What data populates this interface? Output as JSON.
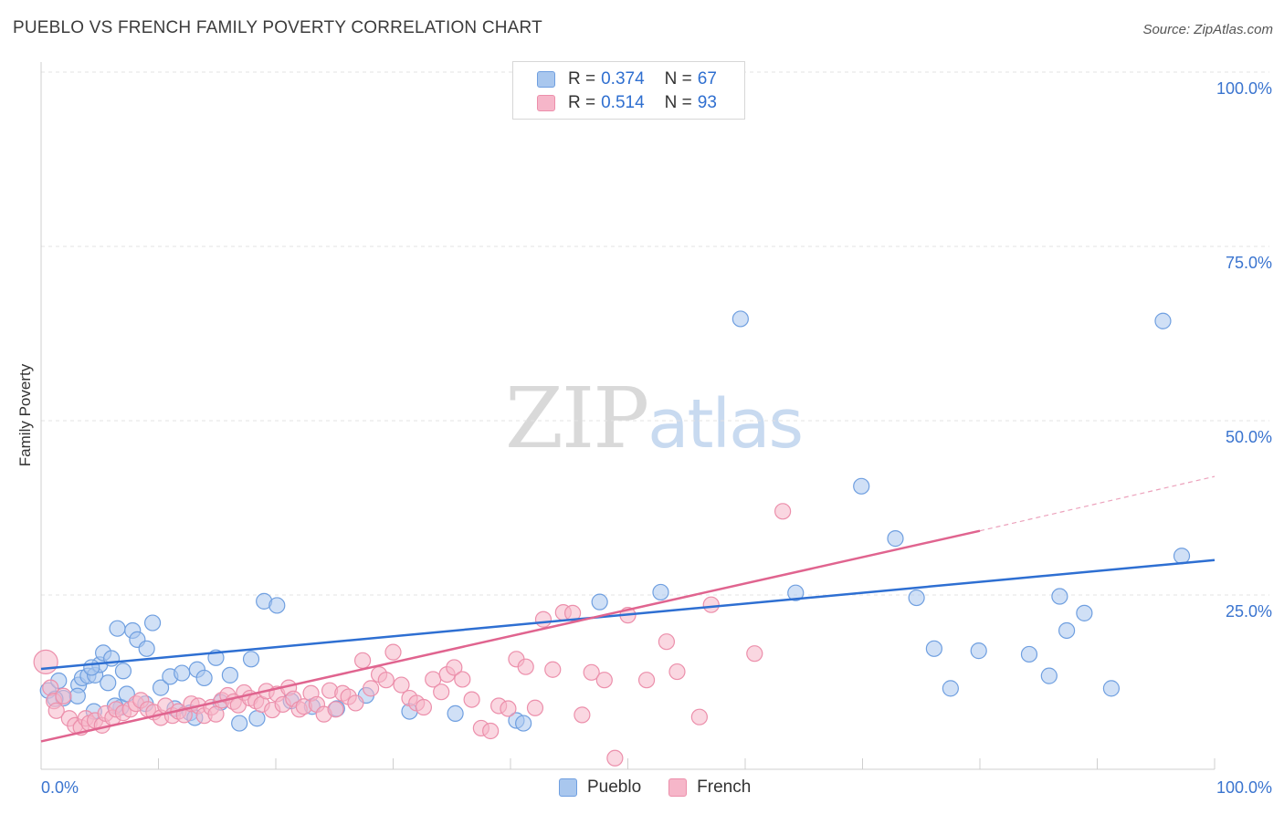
{
  "title": "PUEBLO VS FRENCH FAMILY POVERTY CORRELATION CHART",
  "source": "Source: ZipAtlas.com",
  "watermark": {
    "zip": "ZIP",
    "atlas": "atlas"
  },
  "colors": {
    "pueblo_fill": "#a9c7ee",
    "pueblo_stroke": "#6f9fe0",
    "pueblo_line": "#2e6fd2",
    "french_fill": "#f6b6c9",
    "french_stroke": "#ec8fab",
    "french_line": "#e0648f",
    "grid": "#e3e3e3",
    "tick_label": "#3a74cf"
  },
  "legend": {
    "pueblo": {
      "r_label": "R =",
      "r_value": "0.374",
      "n_label": "N =",
      "n_value": "67"
    },
    "french": {
      "r_label": "R =",
      "r_value": "0.514",
      "n_label": "N =",
      "n_value": "93"
    }
  },
  "chart_data": {
    "type": "scatter",
    "title": "PUEBLO VS FRENCH FAMILY POVERTY CORRELATION CHART",
    "xlabel": "",
    "ylabel": "Family Poverty",
    "xlim": [
      0,
      100
    ],
    "ylim": [
      0,
      100
    ],
    "x_tick_labels": [
      "0.0%",
      "100.0%"
    ],
    "y_ticks": [
      25,
      50,
      75,
      100
    ],
    "y_tick_labels": [
      "25.0%",
      "50.0%",
      "75.0%",
      "100.0%"
    ],
    "grid": true,
    "legend_position": "top-center",
    "series": [
      {
        "name": "Pueblo",
        "r": 0.374,
        "n": 67,
        "trend": {
          "x0": 0,
          "y0": 14.4,
          "x1": 100,
          "y1": 30.0
        },
        "points": [
          [
            0.6,
            11.3
          ],
          [
            1.5,
            12.7
          ],
          [
            1.9,
            10.2
          ],
          [
            3.2,
            12.1
          ],
          [
            3.5,
            13.1
          ],
          [
            4.0,
            13.4
          ],
          [
            4.6,
            13.5
          ],
          [
            5.0,
            15.0
          ],
          [
            5.3,
            16.7
          ],
          [
            6.0,
            15.9
          ],
          [
            6.5,
            20.2
          ],
          [
            7.0,
            14.1
          ],
          [
            7.8,
            19.9
          ],
          [
            8.2,
            18.6
          ],
          [
            9.0,
            17.3
          ],
          [
            9.5,
            21.0
          ],
          [
            10.2,
            11.7
          ],
          [
            11.0,
            13.3
          ],
          [
            12.0,
            13.8
          ],
          [
            13.3,
            14.3
          ],
          [
            13.9,
            13.1
          ],
          [
            14.9,
            16.0
          ],
          [
            16.1,
            13.5
          ],
          [
            17.9,
            15.8
          ],
          [
            19.0,
            24.1
          ],
          [
            20.1,
            23.5
          ],
          [
            1.2,
            10.1
          ],
          [
            3.1,
            10.5
          ],
          [
            4.3,
            14.6
          ],
          [
            5.7,
            12.4
          ],
          [
            6.8,
            8.9
          ],
          [
            4.5,
            8.3
          ],
          [
            6.3,
            9.1
          ],
          [
            7.3,
            10.8
          ],
          [
            8.9,
            9.4
          ],
          [
            11.4,
            8.7
          ],
          [
            12.7,
            8.1
          ],
          [
            13.1,
            7.4
          ],
          [
            15.3,
            9.6
          ],
          [
            16.9,
            6.6
          ],
          [
            18.4,
            7.3
          ],
          [
            21.3,
            9.8
          ],
          [
            23.1,
            9.0
          ],
          [
            25.2,
            8.7
          ],
          [
            27.7,
            10.6
          ],
          [
            31.4,
            8.3
          ],
          [
            35.3,
            8.0
          ],
          [
            40.5,
            7.0
          ],
          [
            41.1,
            6.6
          ],
          [
            47.6,
            24.0
          ],
          [
            52.8,
            25.4
          ],
          [
            59.6,
            64.6
          ],
          [
            64.3,
            25.3
          ],
          [
            69.9,
            40.6
          ],
          [
            72.8,
            33.1
          ],
          [
            74.6,
            24.6
          ],
          [
            76.1,
            17.3
          ],
          [
            77.5,
            11.6
          ],
          [
            79.9,
            17.0
          ],
          [
            84.2,
            16.5
          ],
          [
            85.9,
            13.4
          ],
          [
            86.8,
            24.8
          ],
          [
            87.4,
            19.9
          ],
          [
            88.9,
            22.4
          ],
          [
            91.2,
            11.6
          ],
          [
            95.6,
            64.3
          ],
          [
            97.2,
            30.6
          ]
        ]
      },
      {
        "name": "French",
        "r": 0.514,
        "n": 93,
        "trend": {
          "x0": 0,
          "y0": 4.0,
          "x1": 80,
          "y1": 34.2,
          "dash_to_x": 100,
          "dash_to_y": 42.0
        },
        "points": [
          [
            0.4,
            15.4
          ],
          [
            0.8,
            11.7
          ],
          [
            1.1,
            9.8
          ],
          [
            1.3,
            8.4
          ],
          [
            1.9,
            10.5
          ],
          [
            2.4,
            7.3
          ],
          [
            2.9,
            6.3
          ],
          [
            3.4,
            6.0
          ],
          [
            3.8,
            7.3
          ],
          [
            4.1,
            6.6
          ],
          [
            4.6,
            7.0
          ],
          [
            5.2,
            6.3
          ],
          [
            5.5,
            8.0
          ],
          [
            6.1,
            7.4
          ],
          [
            6.4,
            8.6
          ],
          [
            7.0,
            8.1
          ],
          [
            7.6,
            8.6
          ],
          [
            8.1,
            9.4
          ],
          [
            8.5,
            9.9
          ],
          [
            9.1,
            8.6
          ],
          [
            9.6,
            8.2
          ],
          [
            10.2,
            7.4
          ],
          [
            10.6,
            9.1
          ],
          [
            11.2,
            7.7
          ],
          [
            11.7,
            8.3
          ],
          [
            12.2,
            7.8
          ],
          [
            12.8,
            9.4
          ],
          [
            13.4,
            9.1
          ],
          [
            13.9,
            7.7
          ],
          [
            14.5,
            8.9
          ],
          [
            14.9,
            7.9
          ],
          [
            15.4,
            9.9
          ],
          [
            15.9,
            10.6
          ],
          [
            16.4,
            9.7
          ],
          [
            16.8,
            9.2
          ],
          [
            17.3,
            11.0
          ],
          [
            17.8,
            10.2
          ],
          [
            18.3,
            9.8
          ],
          [
            18.8,
            9.3
          ],
          [
            19.2,
            11.2
          ],
          [
            19.7,
            8.5
          ],
          [
            20.1,
            10.8
          ],
          [
            20.6,
            9.3
          ],
          [
            21.1,
            11.7
          ],
          [
            21.5,
            10.1
          ],
          [
            22.0,
            8.6
          ],
          [
            22.4,
            9.0
          ],
          [
            23.0,
            10.9
          ],
          [
            23.5,
            9.3
          ],
          [
            24.1,
            7.9
          ],
          [
            24.6,
            11.3
          ],
          [
            25.1,
            8.6
          ],
          [
            25.7,
            10.9
          ],
          [
            26.2,
            10.4
          ],
          [
            26.8,
            9.5
          ],
          [
            27.4,
            15.6
          ],
          [
            28.1,
            11.6
          ],
          [
            28.8,
            13.6
          ],
          [
            29.4,
            12.8
          ],
          [
            30.0,
            16.8
          ],
          [
            30.7,
            12.1
          ],
          [
            31.4,
            10.2
          ],
          [
            32.0,
            9.5
          ],
          [
            32.6,
            8.9
          ],
          [
            33.4,
            12.9
          ],
          [
            34.1,
            11.1
          ],
          [
            34.6,
            13.6
          ],
          [
            35.2,
            14.6
          ],
          [
            35.9,
            12.9
          ],
          [
            36.7,
            10.0
          ],
          [
            37.5,
            5.9
          ],
          [
            38.3,
            5.5
          ],
          [
            39.0,
            9.1
          ],
          [
            39.8,
            8.7
          ],
          [
            40.5,
            15.8
          ],
          [
            41.3,
            14.7
          ],
          [
            42.1,
            8.8
          ],
          [
            42.8,
            21.5
          ],
          [
            43.6,
            14.3
          ],
          [
            44.5,
            22.5
          ],
          [
            45.3,
            22.4
          ],
          [
            46.1,
            7.8
          ],
          [
            46.9,
            13.9
          ],
          [
            48.0,
            12.8
          ],
          [
            48.9,
            1.6
          ],
          [
            50.0,
            22.1
          ],
          [
            51.6,
            12.8
          ],
          [
            53.3,
            18.3
          ],
          [
            54.2,
            14.0
          ],
          [
            56.1,
            7.5
          ],
          [
            57.1,
            23.6
          ],
          [
            60.8,
            16.6
          ],
          [
            63.2,
            37.0
          ]
        ]
      }
    ]
  }
}
